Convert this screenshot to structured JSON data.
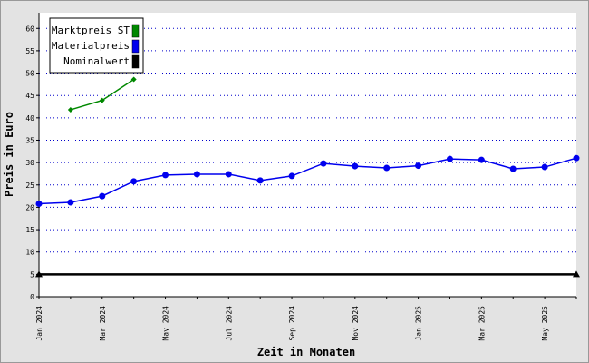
{
  "chart_data": {
    "type": "line",
    "x_label": "Zeit in Monaten",
    "y_label": "Preis in Euro",
    "categories": [
      "Jan 2024",
      null,
      "Mar 2024",
      null,
      "May 2024",
      null,
      "Jul 2024",
      null,
      "Sep 2024",
      null,
      "Nov 2024",
      null,
      "Jan 2025",
      null,
      "Mar 2025",
      null,
      "May 2025",
      null
    ],
    "series": [
      {
        "name": "Marktpreis ST",
        "color": "#008800",
        "marker": "diamond",
        "values": [
          null,
          41.8,
          43.9,
          48.6,
          null,
          null,
          null,
          null,
          null,
          null,
          null,
          null,
          null,
          null,
          null,
          null,
          null,
          null
        ]
      },
      {
        "name": "Materialpreis",
        "color": "#0000ee",
        "marker": "circle",
        "values": [
          20.8,
          21.1,
          22.5,
          25.8,
          27.2,
          27.4,
          27.4,
          26.0,
          27.0,
          29.8,
          29.2,
          28.8,
          29.3,
          30.8,
          30.6,
          28.6,
          29.0,
          31.0
        ]
      },
      {
        "name": "Nominalwert",
        "color": "#000000",
        "marker": "triangle",
        "values": [
          5,
          5,
          5,
          5,
          5,
          5,
          5,
          5,
          5,
          5,
          5,
          5,
          5,
          5,
          5,
          5,
          5,
          5
        ]
      }
    ],
    "ylim": [
      0,
      63.5
    ],
    "yticks": [
      0,
      5,
      10,
      15,
      20,
      25,
      30,
      35,
      40,
      45,
      50,
      55,
      60
    ],
    "grid": true,
    "legend": "top-left"
  }
}
